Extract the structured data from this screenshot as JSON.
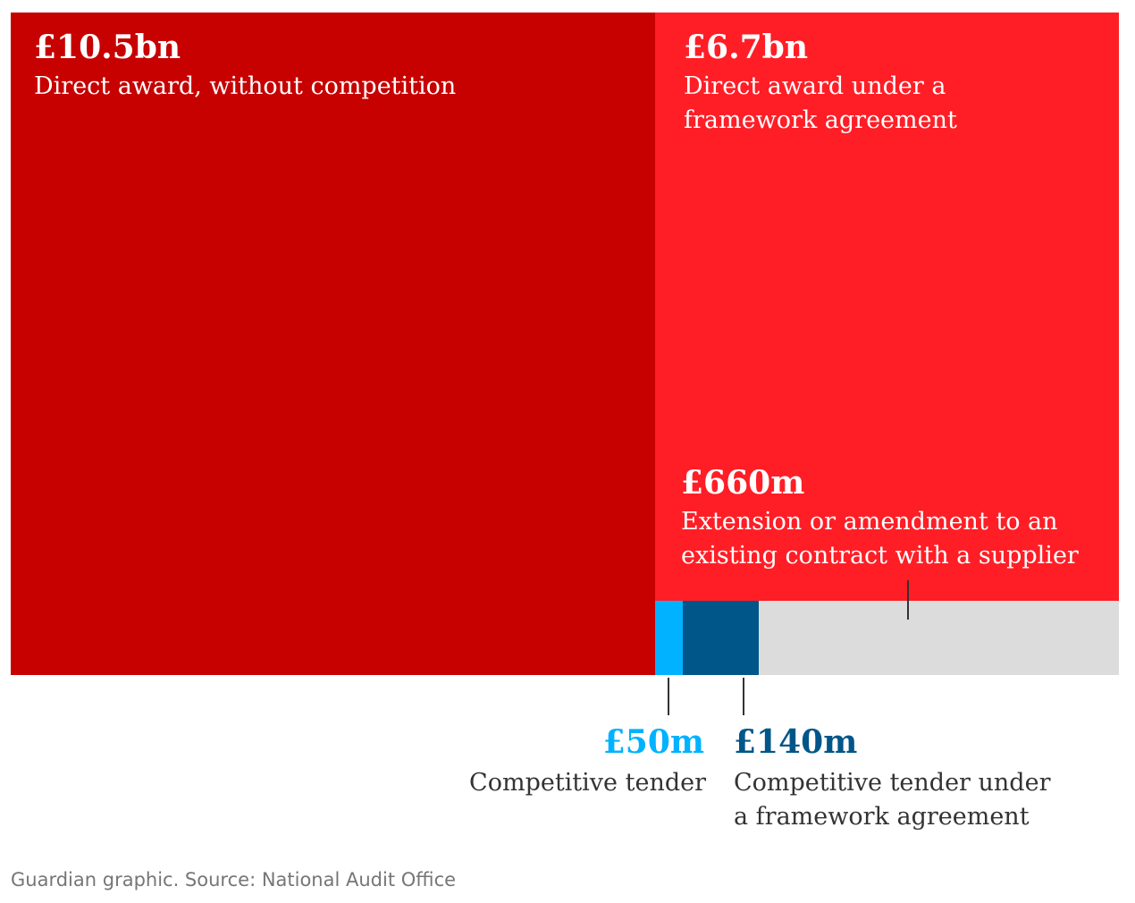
{
  "chart_data": {
    "type": "treemap",
    "unit": "£m",
    "segments": [
      {
        "key": "direct_award",
        "value": 10500,
        "value_label": "£10.5bn",
        "label": "Direct award, without competition",
        "color": "#c70000"
      },
      {
        "key": "framework_direct",
        "value": 6700,
        "value_label": "£6.7bn",
        "label": "Direct award under a framework agreement",
        "color": "#ff1e26"
      },
      {
        "key": "competitive_tender",
        "value": 50,
        "value_label": "£50m",
        "label": "Competitive tender",
        "color": "#00b2ff"
      },
      {
        "key": "competitive_framework",
        "value": 140,
        "value_label": "£140m",
        "label": "Competitive tender under a framework agreement",
        "color": "#005689"
      },
      {
        "key": "extension",
        "value": 660,
        "value_label": "£660m",
        "label": "Extension or amendment to an existing contract with a supplier",
        "color": "#dcdcdc"
      }
    ]
  },
  "labels": {
    "direct_award": {
      "value": "£10.5bn",
      "line1": "Direct award, without competition"
    },
    "framework_direct": {
      "value": "£6.7bn",
      "line1": "Direct award under a",
      "line2": "framework agreement"
    },
    "extension": {
      "value": "£660m",
      "line1": "Extension or amendment to an",
      "line2": "existing contract with a supplier"
    },
    "competitive_tender": {
      "value": "£50m",
      "line1": "Competitive tender"
    },
    "competitive_framework": {
      "value": "£140m",
      "line1": "Competitive tender under",
      "line2": "a framework agreement"
    }
  },
  "colors": {
    "value_competitive_tender": "#00b2ff",
    "value_competitive_framework": "#005689"
  },
  "source": "Guardian graphic. Source: National Audit Office"
}
